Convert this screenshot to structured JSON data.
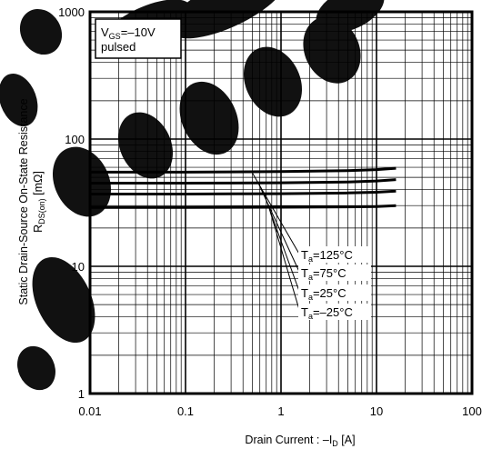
{
  "chart_data": {
    "type": "line",
    "x_scale": "log",
    "y_scale": "log",
    "xlim": [
      0.01,
      100
    ],
    "ylim": [
      1,
      1000
    ],
    "x_ticks": [
      "0.01",
      "0.1",
      "1",
      "10",
      "100"
    ],
    "y_ticks": [
      "1",
      "10",
      "100",
      "1000"
    ],
    "xlabel": {
      "main": "Drain Current : –I",
      "sub": "D",
      "unit": " [A]"
    },
    "ylabel": {
      "line1": "Static Drain-Source On-State Resistance",
      "line2_main": "R",
      "line2_sub": "DS(on)",
      "line2_unit": " [mΩ]"
    },
    "grid": true,
    "condition_box": {
      "main": "V",
      "sub": "GS",
      "value": "=–10V",
      "line2": "pulsed"
    },
    "series": [
      {
        "name_main": "T",
        "name_sub": "a",
        "name_value": "=125°C",
        "x": [
          0.01,
          0.1,
          1,
          5,
          10,
          16
        ],
        "y": [
          55,
          55,
          55.5,
          56.5,
          57.5,
          59
        ]
      },
      {
        "name_main": "T",
        "name_sub": "a",
        "name_value": "=75°C",
        "x": [
          0.01,
          0.1,
          1,
          5,
          10,
          16
        ],
        "y": [
          45,
          45,
          45.3,
          46,
          46.8,
          48
        ]
      },
      {
        "name_main": "T",
        "name_sub": "a",
        "name_value": "=25°C",
        "x": [
          0.01,
          0.1,
          1,
          5,
          10,
          16
        ],
        "y": [
          37,
          37,
          37.2,
          37.7,
          38.2,
          39
        ]
      },
      {
        "name_main": "T",
        "name_sub": "a",
        "name_value": "=–25°C",
        "x": [
          0.01,
          0.1,
          1,
          5,
          10,
          16
        ],
        "y": [
          29,
          29,
          29.1,
          29.3,
          29.5,
          30
        ]
      }
    ],
    "colors": {
      "lines": "#000000",
      "watermark": "#1a1a1a"
    }
  }
}
